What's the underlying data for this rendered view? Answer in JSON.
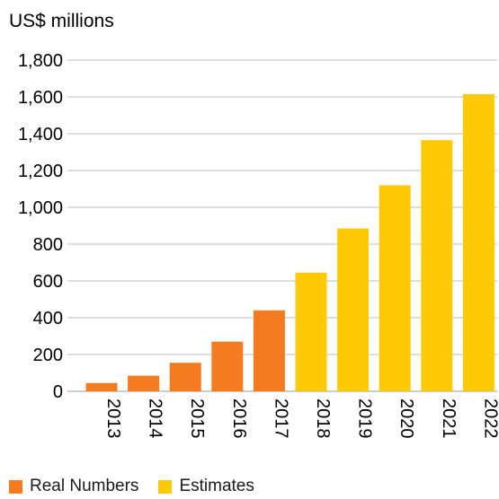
{
  "chart_data": {
    "type": "bar",
    "unit_label": "US$ millions",
    "categories": [
      "2013",
      "2014",
      "2015",
      "2016",
      "2017",
      "2018",
      "2019",
      "2020",
      "2021",
      "2022"
    ],
    "series": [
      {
        "name": "Real Numbers",
        "color": "#F47B20",
        "values": [
          45,
          85,
          155,
          270,
          440,
          null,
          null,
          null,
          null,
          null
        ]
      },
      {
        "name": "Estimates",
        "color": "#FFC907",
        "values": [
          null,
          null,
          null,
          null,
          null,
          645,
          885,
          1120,
          1365,
          1615
        ]
      }
    ],
    "ylim": [
      0,
      1800
    ],
    "yticks": [
      0,
      200,
      400,
      600,
      800,
      1000,
      1200,
      1400,
      1600,
      1800
    ],
    "ytick_labels": [
      "0",
      "200",
      "400",
      "600",
      "800",
      "1,000",
      "1,200",
      "1,400",
      "1,600",
      "1,800"
    ],
    "grid": true,
    "legend_position": "bottom-left"
  }
}
